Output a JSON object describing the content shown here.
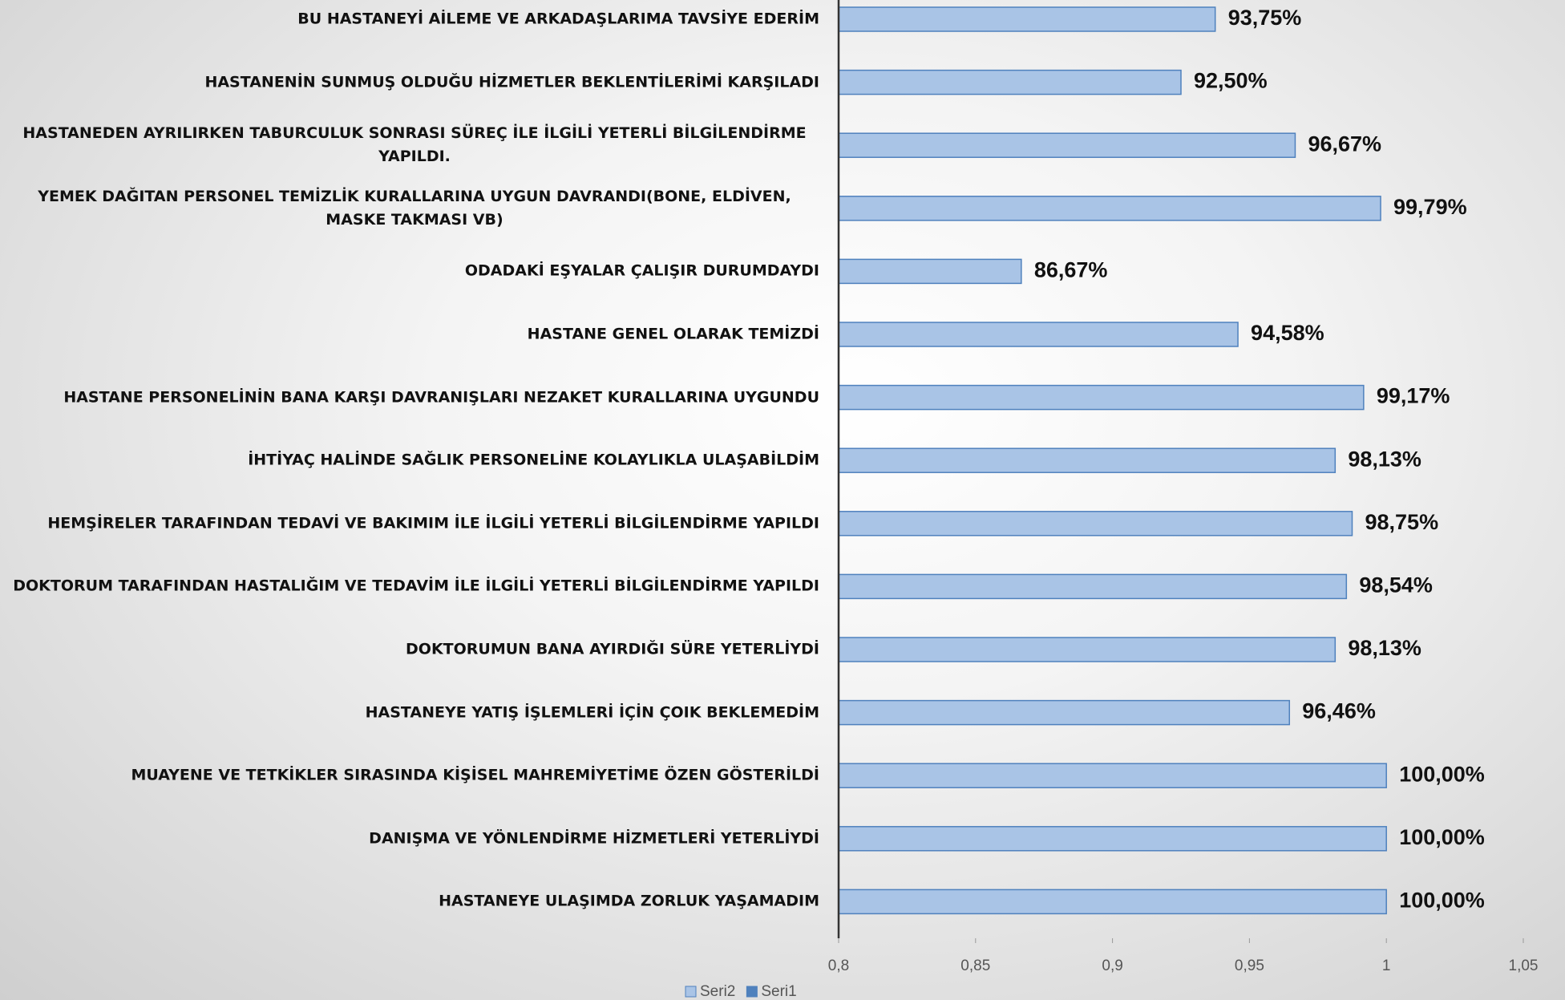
{
  "chart_data": {
    "type": "bar",
    "orientation": "horizontal",
    "categories": [
      "BU HASTANEYİ AİLEME VE ARKADAŞLARIMA TAVSİYE EDERİM",
      "HASTANENİN SUNMUŞ OLDUĞU HİZMETLER BEKLENTİLERİMİ KARŞILADI",
      "HASTANEDEN AYRILIRKEN TABURCULUK SONRASI SÜREÇ İLE İLGİLİ YETERLİ BİLGİLENDİRME YAPILDI.",
      "YEMEK DAĞITAN PERSONEL TEMİZLİK KURALLARINA UYGUN DAVRANDI(BONE, ELDİVEN, MASKE TAKMASI VB)",
      "ODADAKİ EŞYALAR ÇALIŞIR DURUMDAYDI",
      "HASTANE GENEL OLARAK TEMİZDİ",
      "HASTANE PERSONELİNİN BANA KARŞI DAVRANIŞLARI NEZAKET KURALLARINA UYGUNDU",
      "İHTİYAÇ HALİNDE SAĞLIK PERSONELİNE KOLAYLIKLA ULAŞABİLDİM",
      "HEMŞİRELER TARAFINDAN TEDAVİ VE BAKIMIM İLE İLGİLİ YETERLİ BİLGİLENDİRME YAPILDI",
      "DOKTORUM TARAFINDAN HASTALIĞIM VE TEDAVİM İLE İLGİLİ YETERLİ BİLGİLENDİRME YAPILDI",
      "DOKTORUMUN BANA AYIRDIĞI SÜRE YETERLİYDİ",
      "HASTANEYE YATIŞ İŞLEMLERİ İÇİN ÇOIK BEKLEMEDİM",
      "MUAYENE VE TETKİKLER SIRASINDA KİŞİSEL MAHREMİYETİME ÖZEN GÖSTERİLDİ",
      "DANIŞMA VE YÖNLENDİRME HİZMETLERİ YETERLİYDİ",
      "HASTANEYE ULAŞIMDA ZORLUK YAŞAMADIM"
    ],
    "series": [
      {
        "name": "Seri2",
        "color": "#a9c4e6",
        "values": [
          0.9375,
          0.925,
          0.9667,
          0.9979,
          0.8667,
          0.9458,
          0.9917,
          0.9813,
          0.9875,
          0.9854,
          0.9813,
          0.9646,
          1,
          1,
          1
        ],
        "value_labels": [
          "93,75%",
          "92,50%",
          "96,67%",
          "99,79%",
          "86,67%",
          "94,58%",
          "99,17%",
          "98,13%",
          "98,75%",
          "98,54%",
          "98,13%",
          "96,46%",
          "100,00%",
          "100,00%",
          "100,00%"
        ]
      },
      {
        "name": "Seri1",
        "color": "#4f81bd",
        "values": [
          null,
          null,
          null,
          null,
          null,
          null,
          null,
          null,
          null,
          null,
          null,
          null,
          null,
          null,
          null
        ]
      }
    ],
    "xlim": [
      0.8,
      1.05
    ],
    "xticks": [
      {
        "value": 0.8,
        "label": "0,8"
      },
      {
        "value": 0.85,
        "label": "0,85"
      },
      {
        "value": 0.9,
        "label": "0,9"
      },
      {
        "value": 0.95,
        "label": "0,95"
      },
      1,
      {
        "value": 1.05,
        "label": "1,05"
      }
    ],
    "legend": "bottom"
  }
}
